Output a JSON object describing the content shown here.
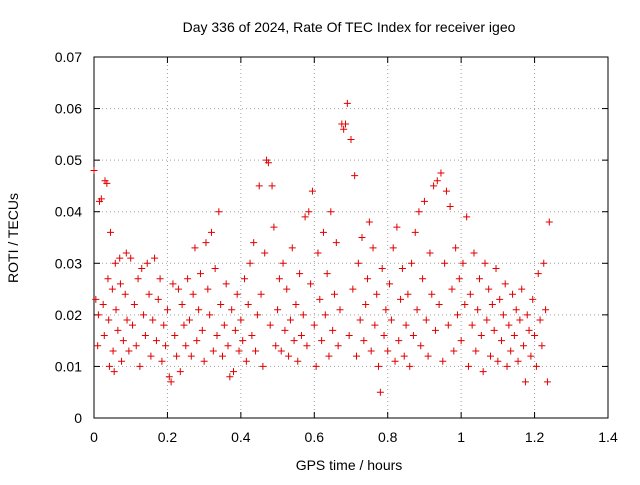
{
  "chart_data": {
    "type": "scatter",
    "title": "Day 336 of 2024, Rate Of TEC Index for receiver igeo",
    "xlabel": "GPS time / hours",
    "ylabel": "ROTI / TECUs",
    "xlim": [
      0,
      1.4
    ],
    "ylim": [
      0,
      0.07
    ],
    "x_ticks": [
      "0",
      "0.2",
      "0.4",
      "0.6",
      "0.8",
      "1",
      "1.2",
      "1.4"
    ],
    "y_ticks": [
      "0",
      "0.01",
      "0.02",
      "0.03",
      "0.04",
      "0.05",
      "0.06",
      "0.07"
    ],
    "grid": true,
    "marker": "+",
    "color": "#e00000",
    "series": [
      {
        "points": [
          [
            0.0,
            0.048
          ],
          [
            0.005,
            0.023
          ],
          [
            0.01,
            0.014
          ],
          [
            0.012,
            0.02
          ],
          [
            0.015,
            0.042
          ],
          [
            0.02,
            0.0425
          ],
          [
            0.025,
            0.022
          ],
          [
            0.028,
            0.016
          ],
          [
            0.03,
            0.046
          ],
          [
            0.035,
            0.0455
          ],
          [
            0.038,
            0.027
          ],
          [
            0.04,
            0.019
          ],
          [
            0.042,
            0.01
          ],
          [
            0.045,
            0.036
          ],
          [
            0.05,
            0.025
          ],
          [
            0.052,
            0.013
          ],
          [
            0.055,
            0.009
          ],
          [
            0.058,
            0.03
          ],
          [
            0.06,
            0.021
          ],
          [
            0.065,
            0.017
          ],
          [
            0.07,
            0.031
          ],
          [
            0.072,
            0.026
          ],
          [
            0.075,
            0.011
          ],
          [
            0.08,
            0.015
          ],
          [
            0.085,
            0.024
          ],
          [
            0.088,
            0.032
          ],
          [
            0.09,
            0.019
          ],
          [
            0.095,
            0.013
          ],
          [
            0.1,
            0.031
          ],
          [
            0.105,
            0.018
          ],
          [
            0.11,
            0.022
          ],
          [
            0.115,
            0.014
          ],
          [
            0.12,
            0.027
          ],
          [
            0.125,
            0.01
          ],
          [
            0.13,
            0.029
          ],
          [
            0.135,
            0.02
          ],
          [
            0.14,
            0.016
          ],
          [
            0.145,
            0.03
          ],
          [
            0.15,
            0.024
          ],
          [
            0.155,
            0.012
          ],
          [
            0.16,
            0.019
          ],
          [
            0.165,
            0.031
          ],
          [
            0.17,
            0.015
          ],
          [
            0.175,
            0.023
          ],
          [
            0.18,
            0.027
          ],
          [
            0.185,
            0.011
          ],
          [
            0.19,
            0.018
          ],
          [
            0.195,
            0.014
          ],
          [
            0.2,
            0.021
          ],
          [
            0.205,
            0.008
          ],
          [
            0.21,
            0.007
          ],
          [
            0.215,
            0.026
          ],
          [
            0.22,
            0.016
          ],
          [
            0.225,
            0.012
          ],
          [
            0.23,
            0.025
          ],
          [
            0.235,
            0.009
          ],
          [
            0.24,
            0.022
          ],
          [
            0.245,
            0.018
          ],
          [
            0.25,
            0.014
          ],
          [
            0.255,
            0.027
          ],
          [
            0.26,
            0.019
          ],
          [
            0.265,
            0.012
          ],
          [
            0.27,
            0.024
          ],
          [
            0.275,
            0.033
          ],
          [
            0.28,
            0.015
          ],
          [
            0.285,
            0.021
          ],
          [
            0.29,
            0.028
          ],
          [
            0.295,
            0.017
          ],
          [
            0.3,
            0.011
          ],
          [
            0.305,
            0.034
          ],
          [
            0.31,
            0.025
          ],
          [
            0.315,
            0.02
          ],
          [
            0.32,
            0.036
          ],
          [
            0.325,
            0.013
          ],
          [
            0.33,
            0.029
          ],
          [
            0.335,
            0.016
          ],
          [
            0.34,
            0.04
          ],
          [
            0.345,
            0.022
          ],
          [
            0.35,
            0.012
          ],
          [
            0.355,
            0.018
          ],
          [
            0.36,
            0.026
          ],
          [
            0.365,
            0.014
          ],
          [
            0.37,
            0.008
          ],
          [
            0.375,
            0.021
          ],
          [
            0.38,
            0.009
          ],
          [
            0.385,
            0.017
          ],
          [
            0.39,
            0.024
          ],
          [
            0.395,
            0.013
          ],
          [
            0.4,
            0.019
          ],
          [
            0.405,
            0.015
          ],
          [
            0.41,
            0.027
          ],
          [
            0.415,
            0.011
          ],
          [
            0.42,
            0.022
          ],
          [
            0.425,
            0.03
          ],
          [
            0.43,
            0.016
          ],
          [
            0.435,
            0.034
          ],
          [
            0.44,
            0.013
          ],
          [
            0.445,
            0.02
          ],
          [
            0.45,
            0.045
          ],
          [
            0.455,
            0.024
          ],
          [
            0.46,
            0.01
          ],
          [
            0.465,
            0.032
          ],
          [
            0.47,
            0.05
          ],
          [
            0.475,
            0.0495
          ],
          [
            0.48,
            0.018
          ],
          [
            0.485,
            0.045
          ],
          [
            0.49,
            0.037
          ],
          [
            0.495,
            0.014
          ],
          [
            0.5,
            0.021
          ],
          [
            0.505,
            0.027
          ],
          [
            0.51,
            0.013
          ],
          [
            0.515,
            0.03
          ],
          [
            0.52,
            0.017
          ],
          [
            0.525,
            0.025
          ],
          [
            0.53,
            0.012
          ],
          [
            0.535,
            0.019
          ],
          [
            0.54,
            0.033
          ],
          [
            0.545,
            0.015
          ],
          [
            0.55,
            0.022
          ],
          [
            0.555,
            0.011
          ],
          [
            0.56,
            0.028
          ],
          [
            0.565,
            0.016
          ],
          [
            0.57,
            0.02
          ],
          [
            0.575,
            0.039
          ],
          [
            0.58,
            0.014
          ],
          [
            0.585,
            0.04
          ],
          [
            0.59,
            0.026
          ],
          [
            0.595,
            0.044
          ],
          [
            0.6,
            0.018
          ],
          [
            0.605,
            0.01
          ],
          [
            0.61,
            0.032
          ],
          [
            0.615,
            0.023
          ],
          [
            0.62,
            0.015
          ],
          [
            0.625,
            0.036
          ],
          [
            0.63,
            0.02
          ],
          [
            0.635,
            0.028
          ],
          [
            0.64,
            0.012
          ],
          [
            0.645,
            0.04
          ],
          [
            0.65,
            0.017
          ],
          [
            0.655,
            0.024
          ],
          [
            0.66,
            0.034
          ],
          [
            0.665,
            0.014
          ],
          [
            0.67,
            0.021
          ],
          [
            0.675,
            0.057
          ],
          [
            0.68,
            0.056
          ],
          [
            0.685,
            0.057
          ],
          [
            0.69,
            0.061
          ],
          [
            0.695,
            0.016
          ],
          [
            0.7,
            0.054
          ],
          [
            0.705,
            0.025
          ],
          [
            0.71,
            0.047
          ],
          [
            0.715,
            0.012
          ],
          [
            0.72,
            0.03
          ],
          [
            0.725,
            0.019
          ],
          [
            0.73,
            0.035
          ],
          [
            0.735,
            0.015
          ],
          [
            0.74,
            0.022
          ],
          [
            0.745,
            0.027
          ],
          [
            0.75,
            0.038
          ],
          [
            0.755,
            0.013
          ],
          [
            0.76,
            0.033
          ],
          [
            0.765,
            0.018
          ],
          [
            0.77,
            0.024
          ],
          [
            0.775,
            0.01
          ],
          [
            0.78,
            0.005
          ],
          [
            0.785,
            0.029
          ],
          [
            0.79,
            0.016
          ],
          [
            0.795,
            0.021
          ],
          [
            0.8,
            0.013
          ],
          [
            0.805,
            0.026
          ],
          [
            0.81,
            0.019
          ],
          [
            0.815,
            0.033
          ],
          [
            0.82,
            0.011
          ],
          [
            0.825,
            0.037
          ],
          [
            0.83,
            0.015
          ],
          [
            0.835,
            0.023
          ],
          [
            0.84,
            0.029
          ],
          [
            0.845,
            0.012
          ],
          [
            0.85,
            0.018
          ],
          [
            0.855,
            0.024
          ],
          [
            0.86,
            0.01
          ],
          [
            0.865,
            0.03
          ],
          [
            0.87,
            0.016
          ],
          [
            0.875,
            0.036
          ],
          [
            0.88,
            0.021
          ],
          [
            0.885,
            0.04
          ],
          [
            0.89,
            0.014
          ],
          [
            0.895,
            0.027
          ],
          [
            0.9,
            0.042
          ],
          [
            0.905,
            0.019
          ],
          [
            0.91,
            0.012
          ],
          [
            0.915,
            0.032
          ],
          [
            0.92,
            0.024
          ],
          [
            0.925,
            0.045
          ],
          [
            0.93,
            0.017
          ],
          [
            0.935,
            0.046
          ],
          [
            0.94,
            0.022
          ],
          [
            0.945,
            0.0475
          ],
          [
            0.95,
            0.011
          ],
          [
            0.955,
            0.03
          ],
          [
            0.96,
            0.044
          ],
          [
            0.965,
            0.018
          ],
          [
            0.97,
            0.041
          ],
          [
            0.975,
            0.025
          ],
          [
            0.98,
            0.013
          ],
          [
            0.985,
            0.033
          ],
          [
            0.99,
            0.02
          ],
          [
            0.995,
            0.027
          ],
          [
            1.0,
            0.015
          ],
          [
            1.005,
            0.03
          ],
          [
            1.01,
            0.022
          ],
          [
            1.015,
            0.039
          ],
          [
            1.02,
            0.01
          ],
          [
            1.025,
            0.024
          ],
          [
            1.03,
            0.018
          ],
          [
            1.035,
            0.032
          ],
          [
            1.04,
            0.013
          ],
          [
            1.045,
            0.021
          ],
          [
            1.05,
            0.027
          ],
          [
            1.055,
            0.016
          ],
          [
            1.06,
            0.009
          ],
          [
            1.065,
            0.03
          ],
          [
            1.07,
            0.019
          ],
          [
            1.075,
            0.025
          ],
          [
            1.08,
            0.012
          ],
          [
            1.085,
            0.022
          ],
          [
            1.09,
            0.017
          ],
          [
            1.095,
            0.029
          ],
          [
            1.1,
            0.011
          ],
          [
            1.105,
            0.023
          ],
          [
            1.11,
            0.015
          ],
          [
            1.115,
            0.02
          ],
          [
            1.12,
            0.026
          ],
          [
            1.125,
            0.01
          ],
          [
            1.13,
            0.018
          ],
          [
            1.135,
            0.013
          ],
          [
            1.14,
            0.024
          ],
          [
            1.145,
            0.016
          ],
          [
            1.15,
            0.021
          ],
          [
            1.155,
            0.011
          ],
          [
            1.16,
            0.019
          ],
          [
            1.165,
            0.025
          ],
          [
            1.17,
            0.014
          ],
          [
            1.175,
            0.007
          ],
          [
            1.18,
            0.02
          ],
          [
            1.185,
            0.017
          ],
          [
            1.19,
            0.012
          ],
          [
            1.195,
            0.023
          ],
          [
            1.2,
            0.016
          ],
          [
            1.205,
            0.01
          ],
          [
            1.21,
            0.028
          ],
          [
            1.215,
            0.019
          ],
          [
            1.22,
            0.014
          ],
          [
            1.225,
            0.03
          ],
          [
            1.23,
            0.021
          ],
          [
            1.235,
            0.007
          ],
          [
            1.24,
            0.038
          ]
        ]
      }
    ]
  }
}
